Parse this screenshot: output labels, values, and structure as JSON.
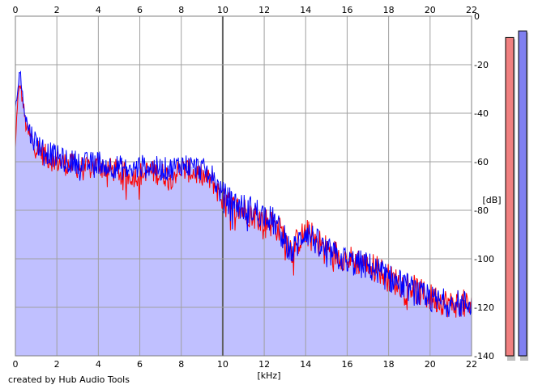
{
  "chart_data": {
    "type": "line",
    "xlabel": "[kHz]",
    "ylabel": "[dB]",
    "xlim": [
      0,
      22
    ],
    "ylim": [
      -140,
      0
    ],
    "x_ticks": [
      0,
      2,
      4,
      6,
      8,
      10,
      12,
      14,
      16,
      18,
      20,
      22
    ],
    "y_ticks": [
      0,
      -20,
      -40,
      -60,
      -80,
      -100,
      -120,
      -140
    ],
    "fill_color": "#c0c0ff",
    "grid": true,
    "series": [
      {
        "color": "#ff0000",
        "x": [
          0,
          0.1,
          0.2,
          0.25,
          0.3,
          0.4,
          0.5,
          0.7,
          1.0,
          1.5,
          2.0,
          2.5,
          3.0,
          3.5,
          4.0,
          4.5,
          5.0,
          5.5,
          6.0,
          6.5,
          7.0,
          7.5,
          8.0,
          8.5,
          9.0,
          9.5,
          10.0,
          10.5,
          11.0,
          11.5,
          12.0,
          12.5,
          13.0,
          13.3,
          13.6,
          14.0,
          14.5,
          15.0,
          15.5,
          16.0,
          16.5,
          17.0,
          17.5,
          18.0,
          18.5,
          19.0,
          19.5,
          20.0,
          20.5,
          21.0,
          21.5,
          22.0
        ],
        "y": [
          -55,
          -35,
          -30,
          -28,
          -32,
          -38,
          -45,
          -50,
          -54,
          -58,
          -60,
          -61,
          -62,
          -63,
          -61,
          -63,
          -64,
          -66,
          -65,
          -64,
          -65,
          -66,
          -63,
          -64,
          -66,
          -68,
          -76,
          -79,
          -80,
          -82,
          -84,
          -86,
          -91,
          -96,
          -93,
          -89,
          -92,
          -96,
          -98,
          -100,
          -101,
          -103,
          -104,
          -108,
          -110,
          -111,
          -114,
          -116,
          -117,
          -119,
          -118,
          -120
        ]
      },
      {
        "color": "#0000ff",
        "x": [
          0,
          0.1,
          0.2,
          0.25,
          0.3,
          0.4,
          0.5,
          0.7,
          1.0,
          1.5,
          2.0,
          2.5,
          3.0,
          3.5,
          4.0,
          4.5,
          5.0,
          5.5,
          6.0,
          6.5,
          7.0,
          7.5,
          8.0,
          8.5,
          9.0,
          9.5,
          10.0,
          10.5,
          11.0,
          11.5,
          12.0,
          12.5,
          13.0,
          13.3,
          13.6,
          14.0,
          14.5,
          15.0,
          15.5,
          16.0,
          16.5,
          17.0,
          17.5,
          18.0,
          18.5,
          19.0,
          19.5,
          20.0,
          20.5,
          21.0,
          21.5,
          22.0
        ],
        "y": [
          -40,
          -30,
          -24,
          -22,
          -30,
          -36,
          -42,
          -48,
          -52,
          -56,
          -58,
          -60,
          -60,
          -61,
          -60,
          -62,
          -62,
          -64,
          -62,
          -62,
          -63,
          -63,
          -61,
          -62,
          -63,
          -66,
          -74,
          -77,
          -79,
          -80,
          -82,
          -85,
          -92,
          -98,
          -94,
          -88,
          -93,
          -97,
          -99,
          -101,
          -102,
          -103,
          -105,
          -108,
          -110,
          -112,
          -115,
          -117,
          -118,
          -118,
          -119,
          -118
        ]
      }
    ],
    "meters": [
      {
        "color": "#f08080",
        "level": 0.96
      },
      {
        "color": "#8080f0",
        "level": 0.98
      }
    ]
  },
  "footer": {
    "credit": "created by Hub Audio Tools"
  }
}
